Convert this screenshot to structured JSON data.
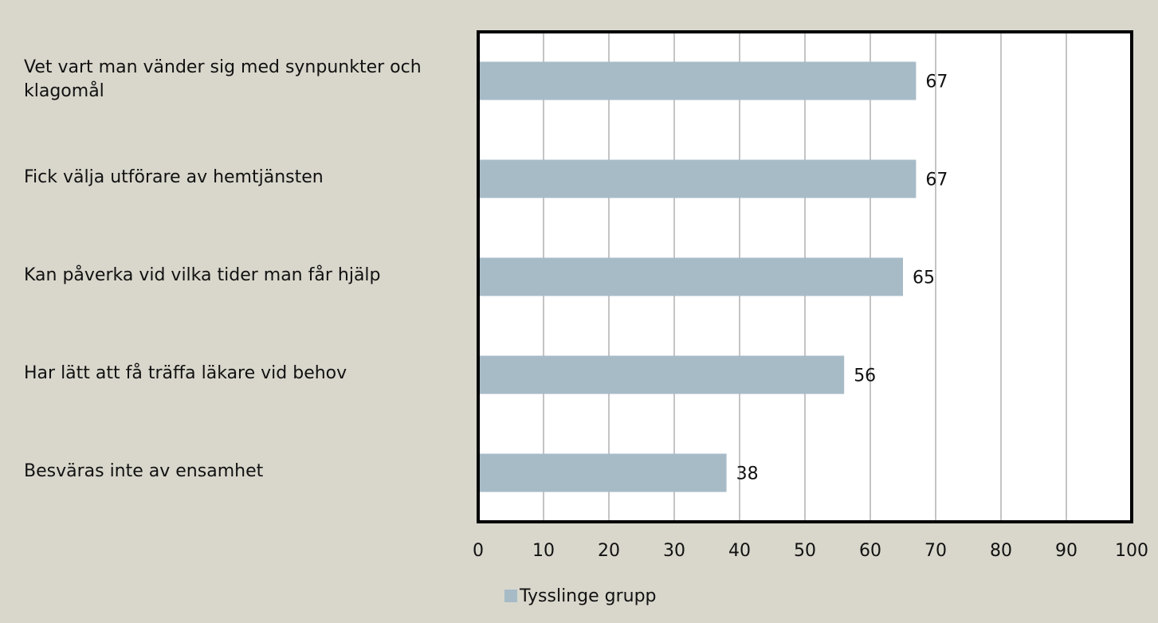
{
  "chart_data": {
    "type": "bar",
    "orientation": "horizontal",
    "categories": [
      "Vet vart man vänder sig med synpunkter och klagomål",
      "Fick välja utförare av hemtjänsten",
      "Kan påverka vid vilka tider man får hjälp",
      "Har lätt att få träffa läkare vid behov",
      "Besväras inte av ensamhet"
    ],
    "series": [
      {
        "name": "Tysslinge grupp",
        "color": "#a7bbc7",
        "values": [
          67,
          67,
          65,
          56,
          38
        ]
      }
    ],
    "xlim": [
      0,
      100
    ],
    "xticks": [
      0,
      10,
      20,
      30,
      40,
      50,
      60,
      70,
      80,
      90,
      100
    ],
    "grid": true,
    "legend": "bottom"
  }
}
